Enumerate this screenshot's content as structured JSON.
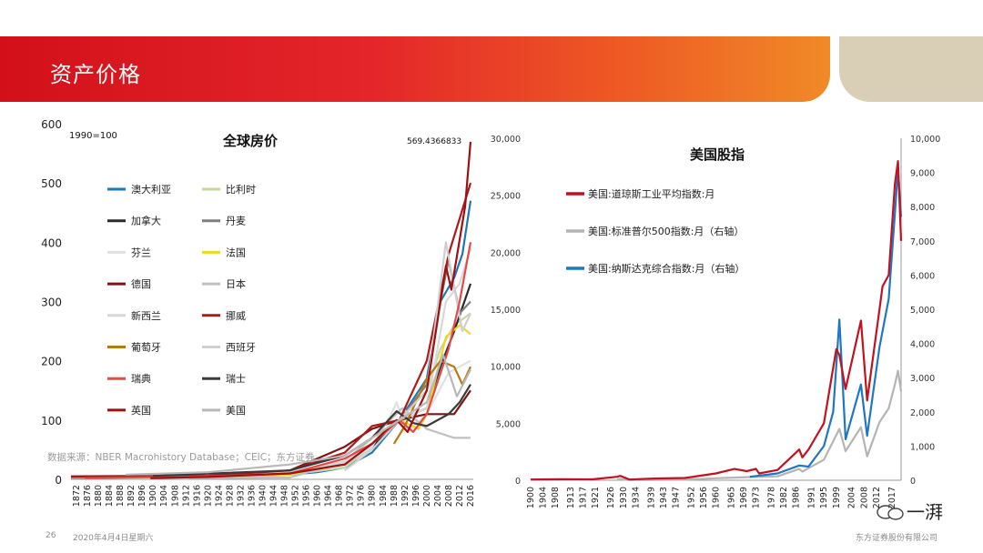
{
  "slide": {
    "title": "资产价格",
    "page_number": "26",
    "date": "2020年4月4日星期六",
    "company": "东方证券股份有限公司",
    "watermark": "一湃"
  },
  "colors": {
    "accent_red": "#d3101a",
    "accent_orange": "#f08a27",
    "tan": "#d9cfb6"
  },
  "chart_data": [
    {
      "type": "line",
      "title": "全球房价",
      "note": "1990=100",
      "annotation": "569.4366833",
      "source": "数据来源：NBER Macrohistory Database；CEIC；东方证券",
      "ylim": [
        0,
        600
      ],
      "yticks": [
        "0",
        "100",
        "200",
        "300",
        "400",
        "500",
        "600"
      ],
      "xticks": [
        "1872",
        "1876",
        "1880",
        "1884",
        "1888",
        "1892",
        "1896",
        "1900",
        "1904",
        "1908",
        "1912",
        "1916",
        "1920",
        "1924",
        "1928",
        "1932",
        "1936",
        "1940",
        "1944",
        "1948",
        "1952",
        "1956",
        "1960",
        "1964",
        "1968",
        "1972",
        "1976",
        "1980",
        "1984",
        "1988",
        "1992",
        "1996",
        "2000",
        "2004",
        "2008",
        "2012",
        "2016"
      ],
      "xrange": [
        1870,
        2017
      ],
      "series": [
        {
          "name": "澳大利亚",
          "color": "#1f77b4",
          "x": [
            1870,
            1900,
            1930,
            1950,
            1960,
            1970,
            1980,
            1990,
            2000,
            2005,
            2010,
            2013,
            2016
          ],
          "values": [
            3,
            4,
            6,
            8,
            12,
            20,
            45,
            100,
            170,
            300,
            340,
            380,
            470
          ]
        },
        {
          "name": "比利时",
          "color": "#c8d6a0",
          "x": [
            1870,
            1920,
            1950,
            1970,
            1980,
            1990,
            2000,
            2005,
            2010,
            2016
          ],
          "values": [
            2,
            4,
            8,
            20,
            55,
            100,
            150,
            220,
            260,
            280
          ]
        },
        {
          "name": "加拿大",
          "color": "#2b2b2b",
          "x": [
            1920,
            1950,
            1970,
            1980,
            1990,
            2000,
            2005,
            2010,
            2016
          ],
          "values": [
            6,
            12,
            25,
            55,
            100,
            120,
            190,
            250,
            330
          ]
        },
        {
          "name": "丹麦",
          "color": "#7f7f7f",
          "x": [
            1870,
            1920,
            1950,
            1970,
            1980,
            1990,
            2000,
            2005,
            2008,
            2012,
            2016
          ],
          "values": [
            2,
            6,
            10,
            30,
            70,
            100,
            160,
            300,
            370,
            280,
            300
          ]
        },
        {
          "name": "芬兰",
          "color": "#e0e0e0",
          "x": [
            1905,
            1950,
            1970,
            1980,
            1987,
            1989,
            1993,
            2000,
            2008,
            2016
          ],
          "values": [
            3,
            10,
            25,
            55,
            110,
            130,
            80,
            110,
            180,
            200
          ]
        },
        {
          "name": "法国",
          "color": "#f2d51f",
          "x": [
            1870,
            1920,
            1940,
            1950,
            1970,
            1980,
            1990,
            1997,
            2000,
            2007,
            2012,
            2016
          ],
          "values": [
            3,
            4,
            5,
            8,
            30,
            70,
            100,
            85,
            110,
            240,
            260,
            245
          ]
        },
        {
          "name": "德国",
          "color": "#7b1616",
          "x": [
            1870,
            1920,
            1950,
            1970,
            1980,
            1990,
            2000,
            2010,
            2016
          ],
          "values": [
            5,
            6,
            15,
            55,
            85,
            100,
            110,
            110,
            150
          ]
        },
        {
          "name": "日本",
          "color": "#c0c0c0",
          "x": [
            1913,
            1950,
            1970,
            1980,
            1991,
            2000,
            2010,
            2016
          ],
          "values": [
            2,
            3,
            30,
            70,
            120,
            85,
            70,
            70
          ]
        },
        {
          "name": "新西兰",
          "color": "#d8d8d8",
          "x": [
            1870,
            1920,
            1950,
            1970,
            1980,
            1990,
            2000,
            2007,
            2012,
            2016
          ],
          "values": [
            3,
            6,
            12,
            30,
            60,
            100,
            120,
            300,
            330,
            390
          ]
        },
        {
          "name": "挪威",
          "color": "#b01818",
          "x": [
            1870,
            1920,
            1950,
            1970,
            1980,
            1990,
            2000,
            2008,
            2012,
            2016
          ],
          "values": [
            4,
            6,
            15,
            45,
            90,
            100,
            200,
            380,
            440,
            500
          ]
        },
        {
          "name": "葡萄牙",
          "color": "#b9780d",
          "x": [
            1988,
            1992,
            2000,
            2005,
            2010,
            2013,
            2016
          ],
          "values": [
            60,
            90,
            170,
            200,
            190,
            160,
            190
          ]
        },
        {
          "name": "西班牙",
          "color": "#cfcfcf",
          "x": [
            1970,
            1980,
            1990,
            2000,
            2007,
            2013,
            2016
          ],
          "values": [
            15,
            50,
            100,
            150,
            400,
            250,
            280
          ]
        },
        {
          "name": "瑞典",
          "color": "#e24a4a",
          "x": [
            1875,
            1920,
            1950,
            1970,
            1980,
            1990,
            1995,
            2000,
            2008,
            2012,
            2016
          ],
          "values": [
            2,
            5,
            10,
            35,
            60,
            100,
            80,
            110,
            220,
            300,
            400
          ]
        },
        {
          "name": "瑞士",
          "color": "#3a3a3a",
          "x": [
            1900,
            1950,
            1970,
            1980,
            1989,
            1995,
            2000,
            2008,
            2012,
            2016
          ],
          "values": [
            6,
            15,
            40,
            70,
            115,
            95,
            90,
            110,
            130,
            160
          ]
        },
        {
          "name": "英国",
          "color": "#9c1111",
          "x": [
            1899,
            1920,
            1950,
            1970,
            1980,
            1989,
            1993,
            2000,
            2007,
            2009,
            2014,
            2016
          ],
          "values": [
            2,
            4,
            10,
            25,
            60,
            100,
            80,
            150,
            360,
            320,
            460,
            569.44
          ]
        },
        {
          "name": "美国",
          "color": "#b8b8b8",
          "x": [
            1890,
            1920,
            1950,
            1970,
            1980,
            1990,
            2000,
            2006,
            2011,
            2016
          ],
          "values": [
            8,
            12,
            25,
            40,
            70,
            100,
            130,
            210,
            140,
            185
          ]
        }
      ]
    },
    {
      "type": "line",
      "title": "美国股指",
      "ylim_left": [
        0,
        30000
      ],
      "ylim_right": [
        0,
        10000
      ],
      "yticks_left": [
        "0",
        "5,000",
        "10,000",
        "15,000",
        "20,000",
        "25,000",
        "30,000"
      ],
      "yticks_right": [
        "0",
        "1,000",
        "2,000",
        "3,000",
        "4,000",
        "5,000",
        "6,000",
        "7,000",
        "8,000",
        "9,000",
        "10,000"
      ],
      "xticks": [
        "1900",
        "1904",
        "1908",
        "1913",
        "1917",
        "1921",
        "1926",
        "1930",
        "1934",
        "1939",
        "1943",
        "1947",
        "1952",
        "1956",
        "1960",
        "1965",
        "1969",
        "1973",
        "1978",
        "1982",
        "1986",
        "1991",
        "1995",
        "1999",
        "2004",
        "2008",
        "2012",
        "2017"
      ],
      "xrange": [
        1900,
        2020
      ],
      "series": [
        {
          "name": "美国:道琼斯工业平均指数:月",
          "axis": "left",
          "color": "#c1121f",
          "x": [
            1900,
            1910,
            1920,
            1928,
            1929,
            1932,
            1940,
            1950,
            1955,
            1960,
            1966,
            1970,
            1973,
            1974,
            1980,
            1987,
            1988,
            1990,
            1995,
            1999,
            2000,
            2002,
            2007,
            2009,
            2013,
            2014,
            2016,
            2017,
            2018,
            2019,
            2020
          ],
          "values": [
            60,
            90,
            80,
            300,
            380,
            60,
            150,
            200,
            400,
            600,
            990,
            800,
            1000,
            600,
            900,
            2700,
            2000,
            2700,
            5000,
            11500,
            11000,
            8000,
            14000,
            7000,
            15000,
            17000,
            18000,
            22000,
            26000,
            28000,
            21000
          ]
        },
        {
          "name": "美国:标准普尔500指数:月（右轴）",
          "axis": "right",
          "color": "#b4b4b4",
          "x": [
            1928,
            1929,
            1932,
            1950,
            1960,
            1970,
            1980,
            1987,
            1988,
            1995,
            2000,
            2002,
            2007,
            2009,
            2013,
            2016,
            2018,
            2019,
            2020
          ],
          "values": [
            20,
            30,
            6,
            17,
            58,
            90,
            115,
            330,
            250,
            600,
            1500,
            850,
            1550,
            700,
            1700,
            2100,
            2800,
            3200,
            2600
          ]
        },
        {
          "name": "美国:纳斯达克综合指数:月（右轴）",
          "axis": "right",
          "color": "#1f77c4",
          "x": [
            1971,
            1980,
            1987,
            1990,
            1995,
            1998,
            2000,
            2002,
            2007,
            2009,
            2013,
            2016,
            2018,
            2019,
            2020
          ],
          "values": [
            100,
            200,
            430,
            400,
            1000,
            2000,
            4700,
            1200,
            2800,
            1300,
            3900,
            5300,
            7800,
            9100,
            7700
          ]
        }
      ]
    }
  ]
}
